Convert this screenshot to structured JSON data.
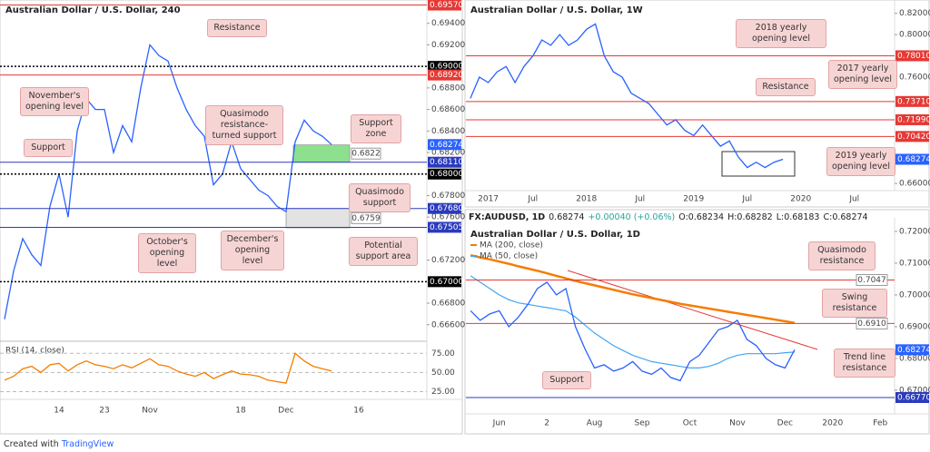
{
  "chart_data": [
    {
      "type": "line",
      "title": "Australian Dollar / U.S. Dollar, 240",
      "color": "#2962ff",
      "categories": [
        null,
        null,
        null,
        null,
        null,
        null,
        "14",
        null,
        null,
        null,
        null,
        "23",
        null,
        null,
        null,
        null,
        "Nov",
        null,
        null,
        null,
        null,
        null,
        null,
        null,
        null,
        null,
        "18",
        null,
        null,
        null,
        null,
        "Dec",
        null,
        null,
        null,
        null,
        null,
        null,
        null,
        "16",
        null,
        null,
        null,
        null,
        null,
        null,
        null
      ],
      "values": [
        0.6665,
        0.671,
        0.674,
        0.6725,
        0.6715,
        0.677,
        0.68,
        0.676,
        0.684,
        0.687,
        0.686,
        0.686,
        0.682,
        0.6845,
        0.683,
        0.688,
        0.692,
        0.691,
        0.6905,
        0.688,
        0.686,
        0.6845,
        0.6835,
        0.679,
        0.68,
        0.683,
        0.6805,
        0.6795,
        0.6785,
        0.678,
        0.677,
        0.6765,
        0.683,
        0.685,
        0.684,
        0.6835,
        0.68274,
        null,
        null,
        null,
        null,
        null,
        null,
        null,
        null,
        null,
        null
      ],
      "ylim": [
        0.6648,
        0.696
      ],
      "yticks": [
        {
          "value": 0.694,
          "label": "0.69400"
        },
        {
          "value": 0.692,
          "label": "0.69200"
        },
        {
          "value": 0.688,
          "label": "0.68800"
        },
        {
          "value": 0.686,
          "label": "0.68600"
        },
        {
          "value": 0.684,
          "label": "0.68400"
        },
        {
          "value": 0.682,
          "label": "0.68200"
        },
        {
          "value": 0.678,
          "label": "0.67800"
        },
        {
          "value": 0.676,
          "label": "0.67600"
        },
        {
          "value": 0.672,
          "label": "0.67200"
        },
        {
          "value": 0.668,
          "label": "0.66800"
        },
        {
          "value": 0.666,
          "label": "0.66600"
        }
      ],
      "levels": [
        {
          "value": 0.6957,
          "label": "0.69570",
          "color": "#e53935",
          "style": "solid",
          "tag": "axis"
        },
        {
          "value": 0.69,
          "label": "0.69000",
          "color": "#000000",
          "style": "dotted",
          "tag": "axis"
        },
        {
          "value": 0.6892,
          "label": "0.68920",
          "color": "#e53935",
          "style": "solid",
          "tag": "axis"
        },
        {
          "value": 0.68274,
          "color": "#2962ff",
          "style": "none",
          "tag": "axis"
        },
        {
          "value": 0.6811,
          "label": "0.68110",
          "color": "#2b3bbd",
          "style": "solid",
          "tag": "axis"
        },
        {
          "value": 0.68,
          "label": "0.68000",
          "color": "#000000",
          "style": "dotted",
          "tag": "axis"
        },
        {
          "value": 0.6768,
          "label": "0.67680",
          "color": "#2b3bbd",
          "style": "solid",
          "tag": "axis"
        },
        {
          "value": 0.67505,
          "color": "#2b3bbd",
          "style": "solid",
          "tag": "axis"
        },
        {
          "value": 0.67,
          "label": "0.67000",
          "color": "#000000",
          "style": "dotted",
          "tag": "axis"
        }
      ],
      "zones": [
        {
          "from": 0.6811,
          "to": 0.6827,
          "color": "#8de08d",
          "label": 0.6822
        },
        {
          "from": 0.675,
          "to": 0.6768,
          "color": "#e3e3e3",
          "label": 0.6759
        }
      ],
      "annotations": [
        "Resistance",
        "November's opening level",
        "Support",
        "Quasimodo resistance-turned support",
        "Support zone",
        "Quasimodo support",
        "October's opening level",
        "December's opening level",
        "Potential support area"
      ],
      "rsi": {
        "title": "RSI (14, close)",
        "color": "#f57c00",
        "values": [
          40,
          45,
          55,
          58,
          50,
          60,
          62,
          52,
          60,
          65,
          60,
          58,
          55,
          60,
          56,
          62,
          68,
          60,
          58,
          52,
          48,
          45,
          50,
          42,
          47,
          52,
          48,
          47,
          45,
          40,
          38,
          36,
          75,
          65,
          58,
          55,
          52,
          null,
          null,
          null,
          null,
          null,
          null,
          null,
          null,
          null,
          null
        ],
        "ylim": [
          22,
          86
        ],
        "yticks": [
          {
            "value": 75,
            "label": "75.00"
          },
          {
            "value": 50,
            "label": "50.00"
          },
          {
            "value": 25,
            "label": "25.00"
          }
        ]
      }
    },
    {
      "type": "line",
      "title": "Australian Dollar / U.S. Dollar, 1W",
      "color": "#2962ff",
      "categories": [
        null,
        null,
        "2017",
        null,
        null,
        null,
        null,
        "Jul",
        null,
        null,
        null,
        null,
        null,
        "2018",
        null,
        null,
        null,
        null,
        null,
        "Jul",
        null,
        null,
        null,
        null,
        null,
        "2019",
        null,
        null,
        null,
        null,
        null,
        "Jul",
        null,
        null,
        null,
        null,
        null,
        "2020",
        null,
        null,
        null,
        null,
        null,
        "Jul",
        null,
        null,
        null,
        null
      ],
      "values": [
        0.74,
        0.76,
        0.755,
        0.765,
        0.77,
        0.755,
        0.77,
        0.78,
        0.795,
        0.79,
        0.8,
        0.79,
        0.795,
        0.805,
        0.81,
        0.78,
        0.765,
        0.76,
        0.745,
        0.74,
        0.735,
        0.725,
        0.715,
        0.72,
        0.71,
        0.705,
        0.715,
        0.705,
        0.695,
        0.7,
        0.685,
        0.675,
        0.68,
        0.675,
        0.68,
        0.68274,
        null,
        null,
        null,
        null,
        null,
        null,
        null,
        null,
        null,
        null,
        null,
        null
      ],
      "ylim": [
        0.655,
        0.83
      ],
      "yticks": [
        {
          "value": 0.82,
          "label": "0.82000"
        },
        {
          "value": 0.8,
          "label": "0.80000"
        },
        {
          "value": 0.76,
          "label": "0.76000"
        },
        {
          "value": 0.66,
          "label": "0.66000"
        }
      ],
      "levels": [
        {
          "value": 0.7801,
          "label": "0.78010",
          "color": "#e53935",
          "style": "solid",
          "tag": "axis"
        },
        {
          "value": 0.7371,
          "label": "0.73710",
          "color": "#e53935",
          "style": "solid",
          "tag": "axis"
        },
        {
          "value": 0.7199,
          "label": "0.71990",
          "color": "#e53935",
          "style": "solid",
          "tag": "axis"
        },
        {
          "value": 0.7042,
          "label": "0.70420",
          "color": "#e53935",
          "style": "solid",
          "tag": "axis"
        },
        {
          "value": 0.68274,
          "color": "#2962ff",
          "style": "none",
          "tag": "axis"
        }
      ],
      "annotations": [
        "2018 yearly opening level",
        "2017 yearly opening level",
        "Resistance",
        "2019 yearly opening level"
      ]
    },
    {
      "type": "line",
      "title": "Australian Dollar / U.S. Dollar, 1D",
      "color": "#2962ff",
      "quote": {
        "symbol": "FX:AUDUSD, 1D",
        "last": "0.68274",
        "change": "+0.00040 (+0.06%)",
        "ohlc": [
          "O:0.68234",
          "H:0.68282",
          "L:0.68183",
          "C:0.68274"
        ]
      },
      "categories": [
        null,
        null,
        null,
        "Jun",
        null,
        null,
        null,
        null,
        "2",
        null,
        null,
        null,
        null,
        "Aug",
        null,
        null,
        null,
        null,
        "Sep",
        null,
        null,
        null,
        null,
        "Oct",
        null,
        null,
        null,
        null,
        "Nov",
        null,
        null,
        null,
        null,
        "Dec",
        null,
        null,
        null,
        null,
        "2020",
        null,
        null,
        null,
        null,
        "Feb",
        null
      ],
      "values": [
        0.695,
        0.692,
        0.694,
        0.695,
        0.69,
        0.693,
        0.697,
        0.702,
        0.704,
        0.7,
        0.702,
        0.69,
        0.683,
        0.677,
        0.678,
        0.676,
        0.677,
        0.679,
        0.676,
        0.675,
        0.677,
        0.674,
        0.673,
        0.679,
        0.681,
        0.685,
        0.689,
        0.69,
        0.692,
        0.686,
        0.684,
        0.68,
        0.678,
        0.677,
        0.68274,
        null,
        null,
        null,
        null,
        null,
        null,
        null,
        null,
        null,
        null
      ],
      "series": [
        {
          "name": "MA (200, close)",
          "color": "#f57c00",
          "values": [
            0.7125,
            0.7118,
            0.7112,
            0.7105,
            0.7098,
            0.709,
            0.7083,
            0.7076,
            0.7068,
            0.706,
            0.7052,
            0.7044,
            0.7037,
            0.703,
            0.7023,
            0.7016,
            0.7009,
            0.7002,
            0.6996,
            0.699,
            0.6984,
            0.6978,
            0.6972,
            0.6967,
            0.6962,
            0.6957,
            0.6952,
            0.6947,
            0.6942,
            0.6937,
            0.6932,
            0.6927,
            0.6922,
            0.6917,
            0.6912,
            null,
            null,
            null,
            null,
            null,
            null,
            null,
            null,
            null,
            null
          ]
        },
        {
          "name": "MA (50, close)",
          "color": "#42a5f5",
          "values": [
            0.706,
            0.704,
            0.702,
            0.7,
            0.6985,
            0.6975,
            0.697,
            0.6965,
            0.696,
            0.6955,
            0.695,
            0.693,
            0.6905,
            0.688,
            0.686,
            0.684,
            0.6825,
            0.681,
            0.68,
            0.679,
            0.6785,
            0.678,
            0.6775,
            0.677,
            0.677,
            0.6775,
            0.6785,
            0.68,
            0.681,
            0.6815,
            0.6815,
            0.6815,
            0.6815,
            0.6818,
            0.682,
            null,
            null,
            null,
            null,
            null,
            null,
            null,
            null,
            null,
            null
          ]
        }
      ],
      "ylim": [
        0.6637,
        0.7234
      ],
      "yticks": [
        {
          "value": 0.72,
          "label": "0.72000"
        },
        {
          "value": 0.71,
          "label": "0.71000"
        },
        {
          "value": 0.7,
          "label": "0.70000"
        },
        {
          "value": 0.69,
          "label": "0.69000"
        },
        {
          "value": 0.68,
          "label": "0.68000"
        },
        {
          "value": 0.67,
          "label": "0.67000"
        }
      ],
      "levels": [
        {
          "value": 0.7047,
          "color": "#e53935",
          "style": "solid",
          "tag": "inline"
        },
        {
          "value": 0.691,
          "label": "0.6910",
          "color": "#e53935",
          "style": "solid",
          "tag": "inline"
        },
        {
          "value": 0.68274,
          "color": "#2962ff",
          "style": "none",
          "tag": "axis"
        },
        {
          "value": 0.6677,
          "label": "0.66770",
          "color": "#2b3bbd",
          "style": "solid",
          "tag": "axis"
        }
      ],
      "annotations": [
        "Quasimodo resistance",
        "Swing resistance",
        "Trend line resistance",
        "Support"
      ]
    }
  ],
  "footer": {
    "text": "Created with",
    "brand": "TradingView"
  }
}
